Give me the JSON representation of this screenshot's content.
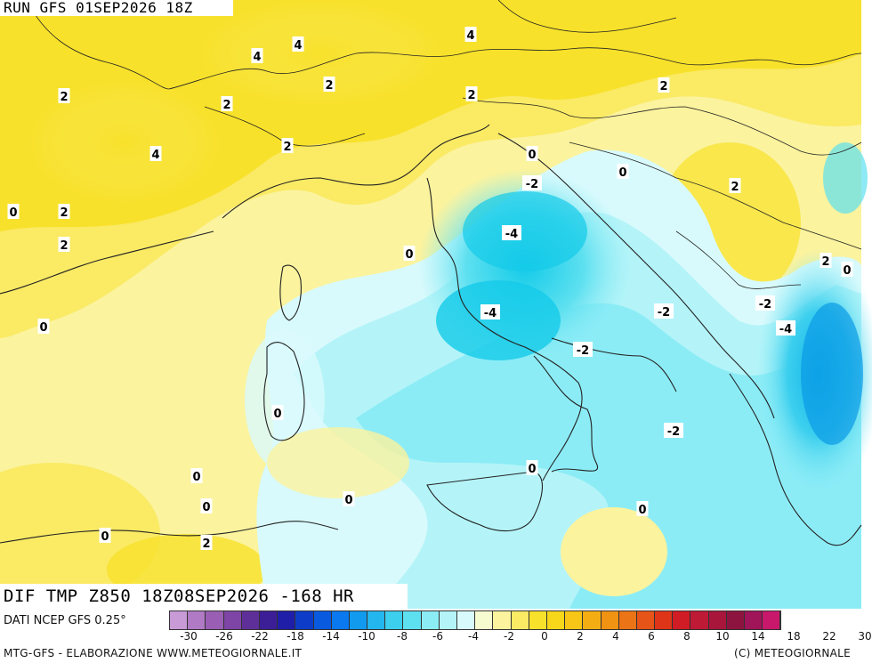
{
  "header": {
    "run_title": "RUN GFS 01SEP2026 18Z"
  },
  "field_title": "DIF TMP Z850 18Z08SEP2026 -168 HR",
  "footer": {
    "source": "DATI NCEP GFS 0.25°",
    "left_credit": "MTG-GFS - ELABORAZIONE WWW.METEOGIORNALE.IT",
    "right_credit": "(C) METEOGIORNALE"
  },
  "legend": {
    "tick_labels": [
      "-30",
      "-26",
      "-22",
      "-18",
      "-14",
      "-10",
      "-8",
      "-6",
      "-4",
      "-2",
      "0",
      "2",
      "4",
      "6",
      "8",
      "10",
      "14",
      "18",
      "22",
      "30"
    ],
    "colors": [
      "#c89ad6",
      "#b07ac4",
      "#9a5fb4",
      "#7e45a6",
      "#5e2f98",
      "#3c1e96",
      "#1f1ea8",
      "#0d3cc8",
      "#0a5ae0",
      "#0a78ee",
      "#129aee",
      "#24b6ee",
      "#3ccfee",
      "#5de0f0",
      "#8cecf6",
      "#b4f4f8",
      "#d9fafc",
      "#f7fbd0",
      "#fbf39e",
      "#faea64",
      "#f8e12a",
      "#f8d61a",
      "#f7c616",
      "#f4ae14",
      "#f09212",
      "#eb7416",
      "#e65418",
      "#de3418",
      "#d01c24",
      "#be1a36",
      "#a8163c",
      "#8e1440",
      "#a0145a",
      "#c8186c"
    ]
  },
  "contour_labels": [
    {
      "text": "4"
    },
    {
      "text": "4"
    },
    {
      "text": "4"
    },
    {
      "text": "2"
    },
    {
      "text": "2"
    },
    {
      "text": "2"
    },
    {
      "text": "2"
    },
    {
      "text": "2"
    },
    {
      "text": "4"
    },
    {
      "text": "0"
    },
    {
      "text": "2"
    },
    {
      "text": "2"
    },
    {
      "text": "2"
    },
    {
      "text": "0"
    },
    {
      "text": "0"
    },
    {
      "text": "-2"
    },
    {
      "text": "2"
    },
    {
      "text": "-4"
    },
    {
      "text": "0"
    },
    {
      "text": "2"
    },
    {
      "text": "0"
    },
    {
      "text": "-4"
    },
    {
      "text": "-2"
    },
    {
      "text": "-2"
    },
    {
      "text": "-2"
    },
    {
      "text": "-4"
    },
    {
      "text": "0"
    },
    {
      "text": "-2"
    },
    {
      "text": "0"
    },
    {
      "text": "0"
    },
    {
      "text": "0"
    },
    {
      "text": "0"
    },
    {
      "text": "0"
    },
    {
      "text": "0"
    },
    {
      "text": "2"
    },
    {
      "text": "0"
    }
  ]
}
